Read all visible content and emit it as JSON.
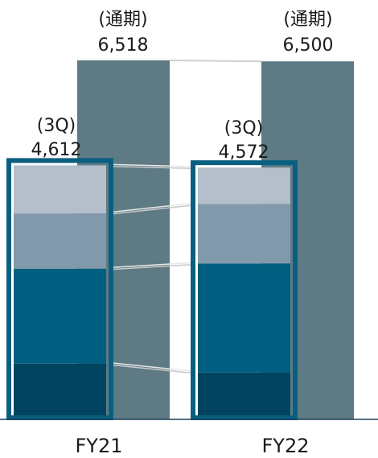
{
  "chart_data": {
    "type": "bar",
    "categories": [
      "FY21",
      "FY22"
    ],
    "full_year": {
      "label": "(通期)",
      "values": [
        6518,
        6500
      ],
      "value_labels": [
        "6,518",
        "6,500"
      ],
      "color": "#5e7b85"
    },
    "q3": {
      "label": "(3Q)",
      "totals": [
        4612,
        4572
      ],
      "total_labels": [
        "4,612",
        "4,572"
      ],
      "outline_color": "#0a5f80",
      "segments": [
        {
          "color": "#00445f",
          "values": [
            1012,
            852
          ]
        },
        {
          "color": "#005f80",
          "values": [
            1725,
            1979
          ]
        },
        {
          "color": "#8299ab",
          "values": [
            1003,
            1080
          ]
        },
        {
          "color": "#b4bfcb",
          "values": [
            872,
            661
          ]
        }
      ]
    },
    "connector_color": "#c8c8c8",
    "ylim": [
      0,
      6900
    ]
  }
}
